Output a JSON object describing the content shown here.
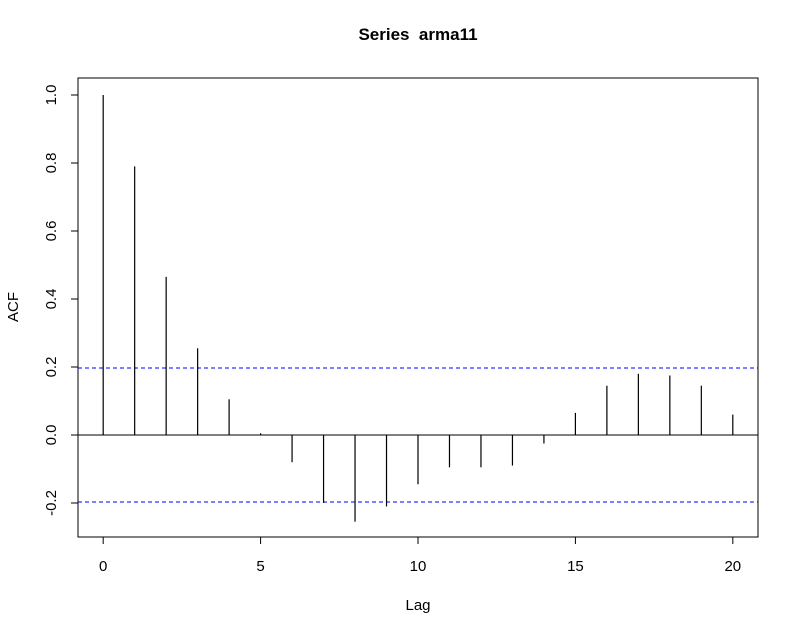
{
  "chart_data": {
    "type": "bar",
    "title": "Series  arma11",
    "xlabel": "Lag",
    "ylabel": "ACF",
    "x": [
      0,
      1,
      2,
      3,
      4,
      5,
      6,
      7,
      8,
      9,
      10,
      11,
      12,
      13,
      14,
      15,
      16,
      17,
      18,
      19,
      20
    ],
    "values": [
      1.0,
      0.79,
      0.465,
      0.255,
      0.105,
      0.005,
      -0.08,
      -0.2,
      -0.255,
      -0.21,
      -0.145,
      -0.095,
      -0.095,
      -0.09,
      -0.025,
      0.065,
      0.145,
      0.18,
      0.175,
      0.145,
      0.06
    ],
    "xlim": [
      -0.8,
      20.8
    ],
    "ylim": [
      -0.3,
      1.05
    ],
    "x_ticks": [
      0,
      5,
      10,
      15,
      20
    ],
    "x_tick_labels": [
      "0",
      "5",
      "10",
      "15",
      "20"
    ],
    "y_ticks": [
      -0.2,
      0.0,
      0.2,
      0.4,
      0.6,
      0.8,
      1.0
    ],
    "y_tick_labels": [
      "-0.2",
      "0.0",
      "0.2",
      "0.4",
      "0.6",
      "0.8",
      "1.0"
    ],
    "confidence_band": 0.197,
    "confidence_color": "#0000ff",
    "grid": false,
    "legend": false
  }
}
